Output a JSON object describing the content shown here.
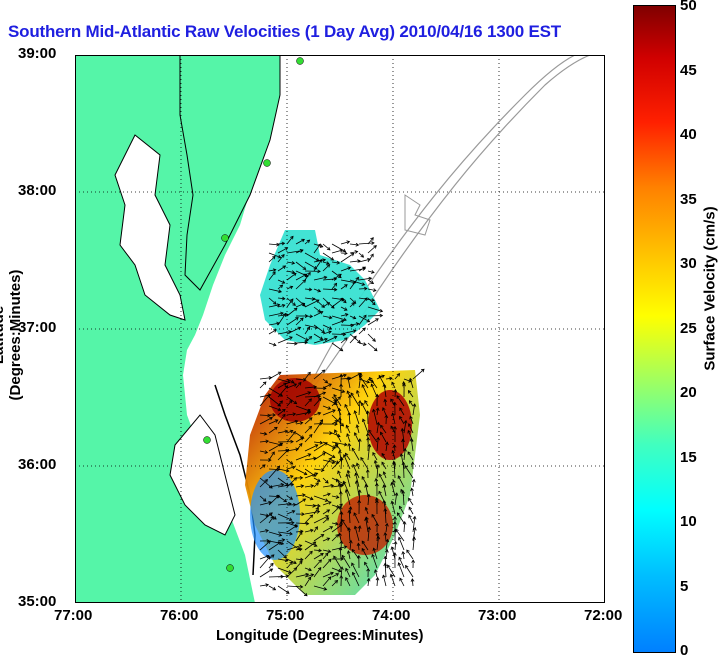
{
  "title": "Southern Mid-Atlantic Raw Velocities (1 Day Avg) 2010/04/16 1300 EST",
  "xlabel": "Longitude (Degrees:Minutes)",
  "ylabel": "Latitude (Degrees:Minutes)",
  "x_ticks": [
    "77:00",
    "76:00",
    "75:00",
    "74:00",
    "73:00",
    "72:00"
  ],
  "y_ticks": [
    "39:00",
    "38:00",
    "37:00",
    "36:00",
    "35:00"
  ],
  "colorbar": {
    "label": "Surface Velocity (cm/s)",
    "ticks": [
      "50",
      "45",
      "40",
      "35",
      "30",
      "25",
      "20",
      "15",
      "10",
      "5",
      "0"
    ],
    "range": [
      0,
      50
    ],
    "colormap": "jet"
  },
  "colors": {
    "land": "#55f5a8",
    "title": "#1f1fe0",
    "bathymetry": "#999999",
    "station": "#33dd33"
  },
  "map": {
    "lon_range": [
      -77,
      -72
    ],
    "lat_range": [
      35,
      39
    ],
    "grid": "dotted"
  }
}
